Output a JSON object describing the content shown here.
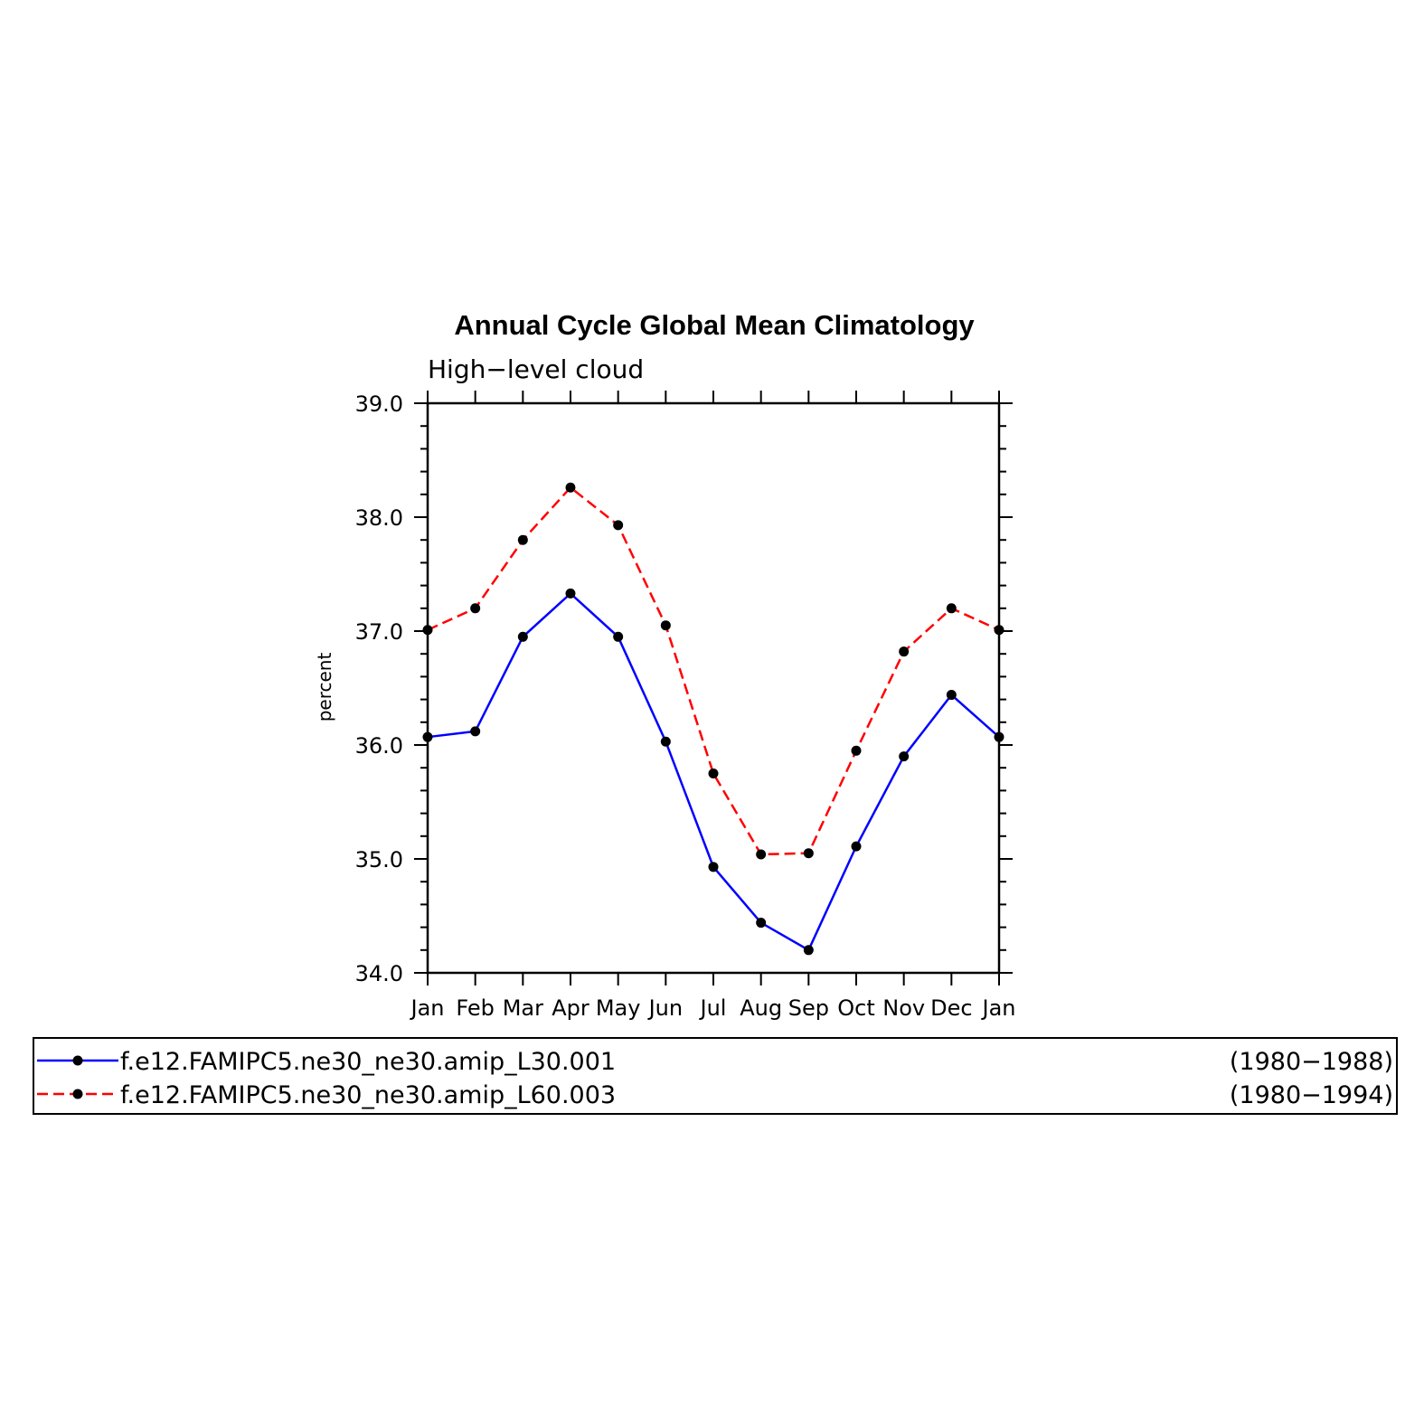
{
  "chart_data": {
    "type": "line",
    "title": "Annual Cycle Global Mean Climatology",
    "subtitle": "High−level cloud",
    "ylabel": "percent",
    "xlabel": "",
    "ylim": [
      34.0,
      39.0
    ],
    "y_ticks": [
      "34.0",
      "35.0",
      "36.0",
      "37.0",
      "38.0",
      "39.0"
    ],
    "categories": [
      "Jan",
      "Feb",
      "Mar",
      "Apr",
      "May",
      "Jun",
      "Jul",
      "Aug",
      "Sep",
      "Oct",
      "Nov",
      "Dec",
      "Jan"
    ],
    "grid": false,
    "legend_position": "bottom",
    "series": [
      {
        "name": "f.e12.FAMIPC5.ne30_ne30.amip_L30.001",
        "period": "(1980−1988)",
        "color": "#0000ff",
        "line_style": "solid",
        "marker": "filled-circle",
        "values": [
          36.07,
          36.12,
          36.95,
          37.33,
          36.95,
          36.03,
          34.93,
          34.44,
          34.2,
          35.11,
          35.9,
          36.44,
          36.07
        ]
      },
      {
        "name": "f.e12.FAMIPC5.ne30_ne30.amip_L60.003",
        "period": "(1980−1994)",
        "color": "#ff0000",
        "line_style": "dashed",
        "marker": "filled-circle",
        "values": [
          37.01,
          37.2,
          37.8,
          38.26,
          37.93,
          37.05,
          35.75,
          35.04,
          35.05,
          35.95,
          36.82,
          37.2,
          37.01
        ]
      }
    ]
  }
}
